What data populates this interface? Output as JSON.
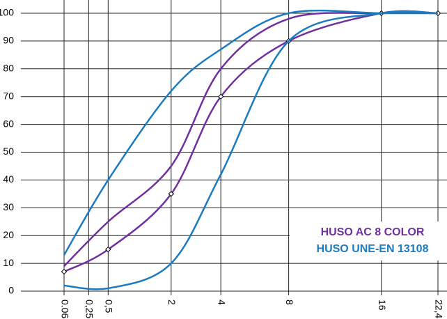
{
  "chart_data": {
    "type": "envelope",
    "x": [
      0.063,
      0.5,
      2,
      4,
      8,
      16,
      22.4
    ],
    "xscale": "power",
    "xexponent": 0.45,
    "xlim": [
      0.063,
      22.4
    ],
    "xticks": [
      0.063,
      {
        "value": 0.25,
        "label": "0,25"
      },
      {
        "value": 0.5,
        "label": "0,5"
      },
      2,
      4,
      8,
      16,
      {
        "value": 22.4,
        "label": "22,4"
      }
    ],
    "ylim": [
      0,
      100
    ],
    "yticks": [
      0,
      10,
      20,
      30,
      40,
      50,
      60,
      70,
      80,
      90,
      100
    ],
    "grid": true,
    "legend": "lower right",
    "series": [
      {
        "name": "HUSO AC 8 COLOR",
        "color": "#7030a0",
        "markers": true,
        "upper": [
          9,
          25,
          45,
          80,
          98,
          100,
          100
        ],
        "lower": [
          7,
          15,
          35,
          70,
          90,
          100,
          100
        ]
      },
      {
        "name": "HUSO UNE-EN 13108",
        "color": "#1b7bc0",
        "markers": false,
        "upper": [
          13,
          40,
          72,
          87,
          100,
          100,
          100
        ],
        "lower": [
          2,
          1,
          10,
          42,
          90,
          100,
          100
        ]
      }
    ]
  }
}
